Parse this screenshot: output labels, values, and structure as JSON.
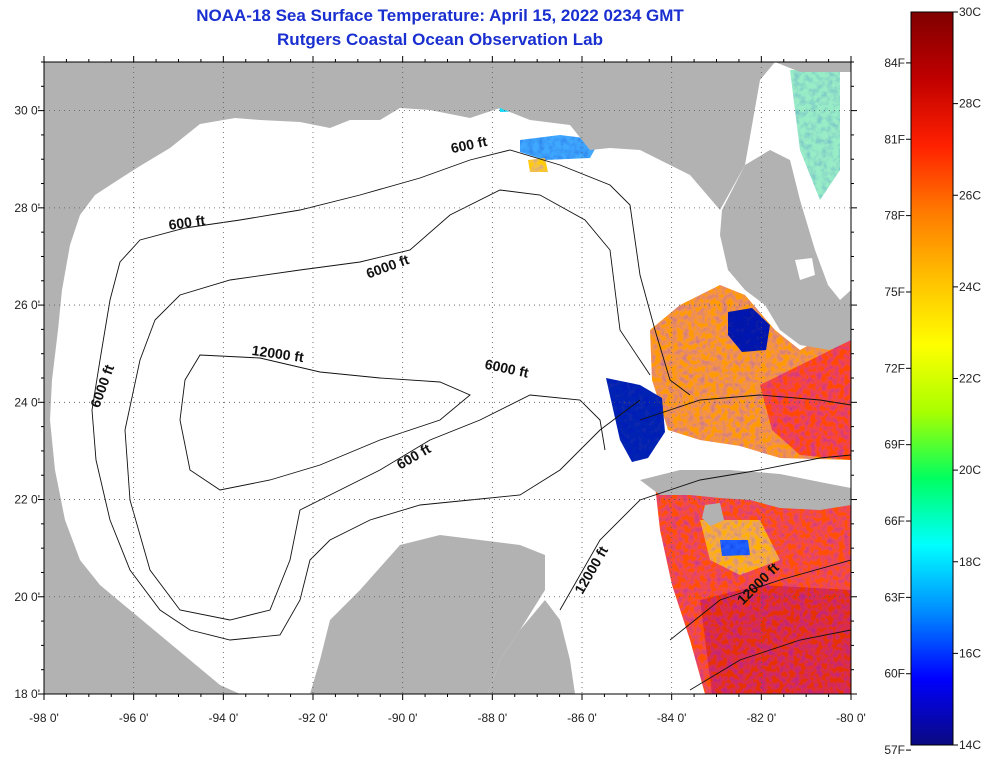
{
  "title": "NOAA-18 Sea Surface Temperature:  April 15, 2022 0234 GMT",
  "subtitle": "Rutgers Coastal Ocean Observation Lab",
  "map": {
    "lon_range": [
      -98,
      -80
    ],
    "lat_range": [
      18,
      31
    ],
    "lat_ticks": [
      {
        "value": 18,
        "label": "18 0'"
      },
      {
        "value": 20,
        "label": "20 0'"
      },
      {
        "value": 22,
        "label": "22 0'"
      },
      {
        "value": 24,
        "label": "24 0'"
      },
      {
        "value": 26,
        "label": "26 0'"
      },
      {
        "value": 28,
        "label": "28 0'"
      },
      {
        "value": 30,
        "label": "30 0'"
      }
    ],
    "lon_ticks": [
      {
        "value": -98,
        "label": "-98 0'"
      },
      {
        "value": -96,
        "label": "-96 0'"
      },
      {
        "value": -94,
        "label": "-94 0'"
      },
      {
        "value": -92,
        "label": "-92 0'"
      },
      {
        "value": -90,
        "label": "-90 0'"
      },
      {
        "value": -88,
        "label": "-88 0'"
      },
      {
        "value": -86,
        "label": "-86 0'"
      },
      {
        "value": -84,
        "label": "-84 0'"
      },
      {
        "value": -82,
        "label": "-82 0'"
      },
      {
        "value": -80,
        "label": "-80 0'"
      }
    ],
    "grid": "dotted",
    "land_color": "#b2b2b2",
    "no_data_color": "#ffffff",
    "contour_labels": [
      {
        "text": "600 ft",
        "lon": -94.8,
        "lat": 27.6,
        "angle": -8
      },
      {
        "text": "600 ft",
        "lon": -88.5,
        "lat": 29.2,
        "angle": -12
      },
      {
        "text": "6000 ft",
        "lon": -90.3,
        "lat": 26.7,
        "angle": -20
      },
      {
        "text": "6000 ft",
        "lon": -96.6,
        "lat": 24.3,
        "angle": -70
      },
      {
        "text": "6000 ft",
        "lon": -87.7,
        "lat": 24.6,
        "angle": 12
      },
      {
        "text": "12000 ft",
        "lon": -92.8,
        "lat": 24.9,
        "angle": 8
      },
      {
        "text": "600 ft",
        "lon": -89.7,
        "lat": 22.8,
        "angle": -30
      },
      {
        "text": "12000 ft",
        "lon": -85.7,
        "lat": 20.5,
        "angle": -60
      },
      {
        "text": "12000 ft",
        "lon": -82.0,
        "lat": 20.2,
        "angle": -45
      }
    ]
  },
  "colorbar": {
    "min_c": 14,
    "max_c": 30,
    "colors": [
      "#0a0a80",
      "#0000ff",
      "#008cff",
      "#00ffff",
      "#00ff60",
      "#a8ff00",
      "#ffff00",
      "#ffc000",
      "#ff7a00",
      "#ff2000",
      "#c00000",
      "#800000"
    ],
    "celsius_labels": [
      {
        "value": 30,
        "label": "30C"
      },
      {
        "value": 28,
        "label": "28C"
      },
      {
        "value": 26,
        "label": "26C"
      },
      {
        "value": 24,
        "label": "24C"
      },
      {
        "value": 22,
        "label": "22C"
      },
      {
        "value": 20,
        "label": "20C"
      },
      {
        "value": 18,
        "label": "18C"
      },
      {
        "value": 16,
        "label": "16C"
      },
      {
        "value": 14,
        "label": "14C"
      }
    ],
    "fahrenheit_labels": [
      {
        "value": 84,
        "label": "84F"
      },
      {
        "value": 81,
        "label": "81F"
      },
      {
        "value": 78,
        "label": "78F"
      },
      {
        "value": 75,
        "label": "75F"
      },
      {
        "value": 72,
        "label": "72F"
      },
      {
        "value": 69,
        "label": "69F"
      },
      {
        "value": 66,
        "label": "66F"
      },
      {
        "value": 63,
        "label": "63F"
      },
      {
        "value": 60,
        "label": "60F"
      },
      {
        "value": 57,
        "label": "57F"
      }
    ]
  }
}
